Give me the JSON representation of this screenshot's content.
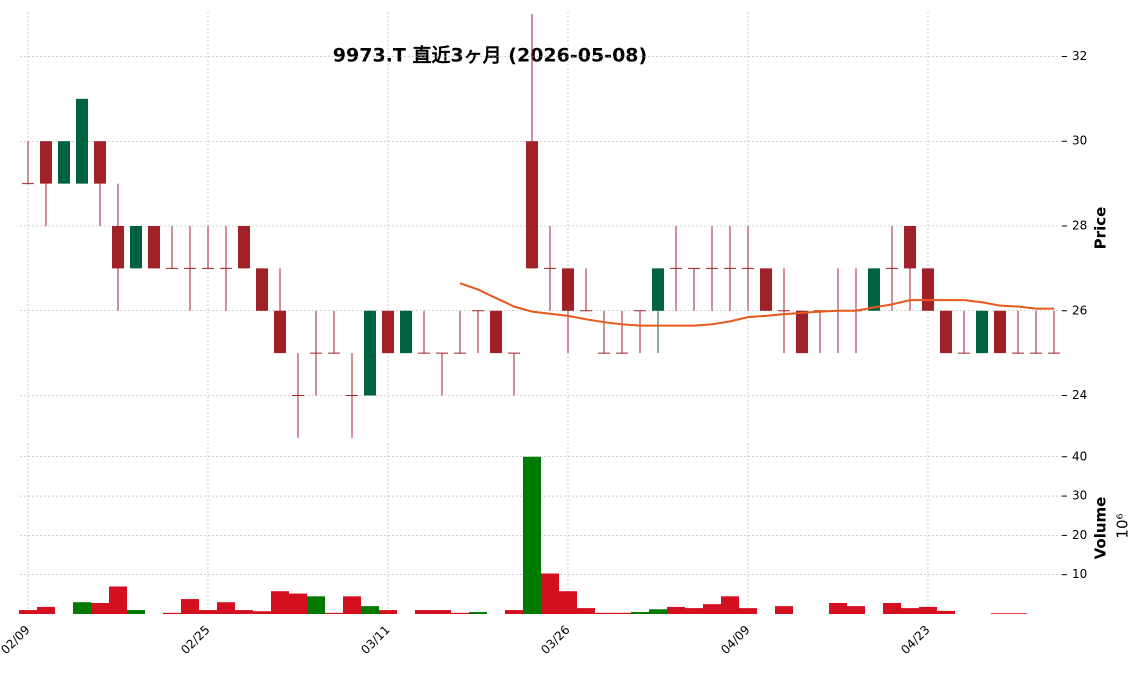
{
  "chart_data": {
    "type": "candlestick",
    "title": "9973.T  直近3ヶ月  (2026-05-08)",
    "ylabel": "Price",
    "categories": [
      "02/09",
      null,
      null,
      null,
      null,
      null,
      null,
      null,
      null,
      null,
      "02/25",
      null,
      null,
      null,
      null,
      null,
      null,
      null,
      null,
      null,
      "03/11",
      null,
      null,
      null,
      null,
      null,
      null,
      null,
      null,
      null,
      "03/26",
      null,
      null,
      null,
      null,
      null,
      null,
      null,
      null,
      null,
      "04/09",
      null,
      null,
      null,
      null,
      null,
      null,
      null,
      null,
      null,
      "04/23",
      null,
      null,
      null,
      null,
      null,
      null,
      null
    ],
    "open": [
      29,
      30,
      29,
      29,
      30,
      28,
      27,
      28,
      27,
      27,
      27,
      27,
      28,
      27,
      26,
      24,
      25,
      25,
      24,
      24,
      26,
      25,
      25,
      25,
      25,
      26,
      26,
      25,
      30,
      27,
      27,
      26,
      25,
      25,
      26,
      26,
      27,
      27,
      27,
      27,
      27,
      27,
      26,
      26,
      26,
      26,
      26,
      26,
      27,
      28,
      27,
      26,
      25,
      25,
      26,
      25,
      25,
      25
    ],
    "high": [
      30,
      30,
      30,
      31,
      30,
      29,
      28,
      28,
      28,
      28,
      28,
      28,
      28,
      27,
      27,
      25,
      26,
      26,
      25,
      26,
      26,
      26,
      26,
      25,
      26,
      26,
      26,
      25,
      33,
      28,
      27,
      27,
      26,
      26,
      26,
      27,
      28,
      27,
      28,
      28,
      28,
      27,
      27,
      26,
      26,
      27,
      27,
      27,
      28,
      28,
      27,
      26,
      26,
      26,
      26,
      26,
      26,
      26
    ],
    "low": [
      29,
      28,
      29,
      29,
      28,
      26,
      27,
      27,
      27,
      26,
      27,
      26,
      27,
      26,
      25,
      23,
      24,
      25,
      23,
      24,
      25,
      25,
      25,
      24,
      25,
      25,
      25,
      24,
      27,
      26,
      25,
      26,
      25,
      25,
      25,
      25,
      26,
      26,
      26,
      26,
      26,
      26,
      25,
      25,
      25,
      25,
      25,
      26,
      26,
      26,
      26,
      25,
      25,
      25,
      25,
      25,
      25,
      25
    ],
    "close": [
      29,
      29,
      30,
      31,
      29,
      27,
      28,
      27,
      27,
      27,
      27,
      27,
      27,
      26,
      25,
      24,
      25,
      25,
      24,
      26,
      25,
      26,
      25,
      25,
      25,
      26,
      25,
      25,
      27,
      27,
      26,
      26,
      25,
      25,
      26,
      27,
      27,
      27,
      27,
      27,
      27,
      26,
      26,
      25,
      26,
      26,
      26,
      27,
      27,
      27,
      26,
      25,
      25,
      26,
      25,
      25,
      25,
      25
    ],
    "ma": [
      null,
      null,
      null,
      null,
      null,
      null,
      null,
      null,
      null,
      null,
      null,
      null,
      null,
      null,
      null,
      null,
      null,
      null,
      null,
      null,
      null,
      null,
      null,
      null,
      26.65,
      26.5,
      26.3,
      26.1,
      25.98,
      25.93,
      25.88,
      25.8,
      25.73,
      25.68,
      25.65,
      25.65,
      25.65,
      25.65,
      25.68,
      25.75,
      25.85,
      25.88,
      25.92,
      25.95,
      25.98,
      26.0,
      26.0,
      26.08,
      26.15,
      26.25,
      26.25,
      26.25,
      26.25,
      26.2,
      26.12,
      26.1,
      26.05,
      26.05
    ],
    "ylim": [
      22.95,
      33.05
    ],
    "yticks": [
      24,
      26,
      28,
      30,
      32
    ],
    "up_color": "#006340",
    "down_color": "#a02128",
    "ma_color": "#e8581c",
    "grid": true,
    "volume": {
      "ylabel": "Volume",
      "exponent": "10⁶",
      "values": [
        1,
        1.8,
        0,
        3,
        2.8,
        7,
        1,
        0,
        0.3,
        3.8,
        1,
        3,
        1,
        0.7,
        5.8,
        5.2,
        4.5,
        0.3,
        4.5,
        2,
        1,
        0,
        1,
        1,
        0.3,
        0.5,
        0,
        1,
        40,
        10.3,
        5.8,
        1.5,
        0.3,
        0.3,
        0.5,
        1.2,
        1.8,
        1.5,
        2.5,
        4.5,
        1.5,
        0,
        2,
        0,
        0,
        2.8,
        2,
        0,
        2.8,
        1.5,
        1.8,
        0.8,
        0,
        0,
        0.2,
        0.2,
        0,
        0
      ],
      "ylim": [
        0,
        43.5
      ],
      "yticks": [
        10,
        20,
        30,
        40
      ],
      "up_color": "#007a00",
      "down_color": "#d41020"
    }
  }
}
